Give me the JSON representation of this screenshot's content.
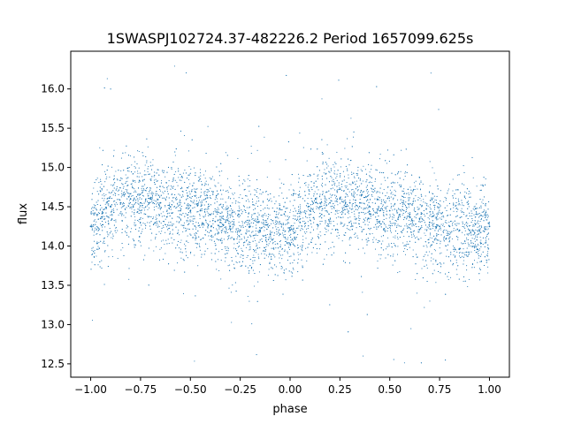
{
  "chart_data": {
    "type": "scatter",
    "title": "1SWASPJ102724.37-482226.2 Period 1657099.625s",
    "xlabel": "phase",
    "ylabel": "flux",
    "xlim": [
      -1.1,
      1.1
    ],
    "ylim": [
      12.33,
      16.48
    ],
    "xticks": [
      -1.0,
      -0.75,
      -0.5,
      -0.25,
      0.0,
      0.25,
      0.5,
      0.75,
      1.0
    ],
    "xtick_labels": [
      "−1.00",
      "−0.75",
      "−0.50",
      "−0.25",
      "0.00",
      "0.25",
      "0.50",
      "0.75",
      "1.00"
    ],
    "yticks": [
      12.5,
      13.0,
      13.5,
      14.0,
      14.5,
      15.0,
      15.5,
      16.0
    ],
    "ytick_labels": [
      "12.5",
      "13.0",
      "13.5",
      "14.0",
      "14.5",
      "15.0",
      "15.5",
      "16.0"
    ],
    "grid": false,
    "marker_color": "#1f77b4",
    "series": [
      {
        "x": [
          -1.0,
          -0.95,
          -0.9,
          -0.85,
          -0.8,
          -0.75,
          -0.7,
          -0.65,
          -0.6,
          -0.55,
          -0.5,
          -0.45,
          -0.4,
          -0.35,
          -0.3,
          -0.25,
          -0.2,
          -0.15,
          -0.1,
          -0.05,
          0.0,
          0.05,
          0.1,
          0.15,
          0.2,
          0.25,
          0.3,
          0.35,
          0.4,
          0.45,
          0.5,
          0.55,
          0.6,
          0.65,
          0.7,
          0.75,
          0.8,
          0.85,
          0.9,
          0.95,
          1.0
        ],
        "y": [
          14.25,
          14.35,
          14.5,
          14.55,
          14.6,
          14.55,
          14.6,
          14.55,
          14.5,
          14.45,
          14.45,
          14.45,
          14.4,
          14.3,
          14.25,
          14.2,
          14.25,
          14.2,
          14.15,
          14.15,
          14.2,
          14.3,
          14.45,
          14.5,
          14.55,
          14.6,
          14.55,
          14.55,
          14.5,
          14.45,
          14.45,
          14.4,
          14.4,
          14.35,
          14.3,
          14.25,
          14.25,
          14.2,
          14.2,
          14.2,
          14.25
        ]
      }
    ]
  }
}
